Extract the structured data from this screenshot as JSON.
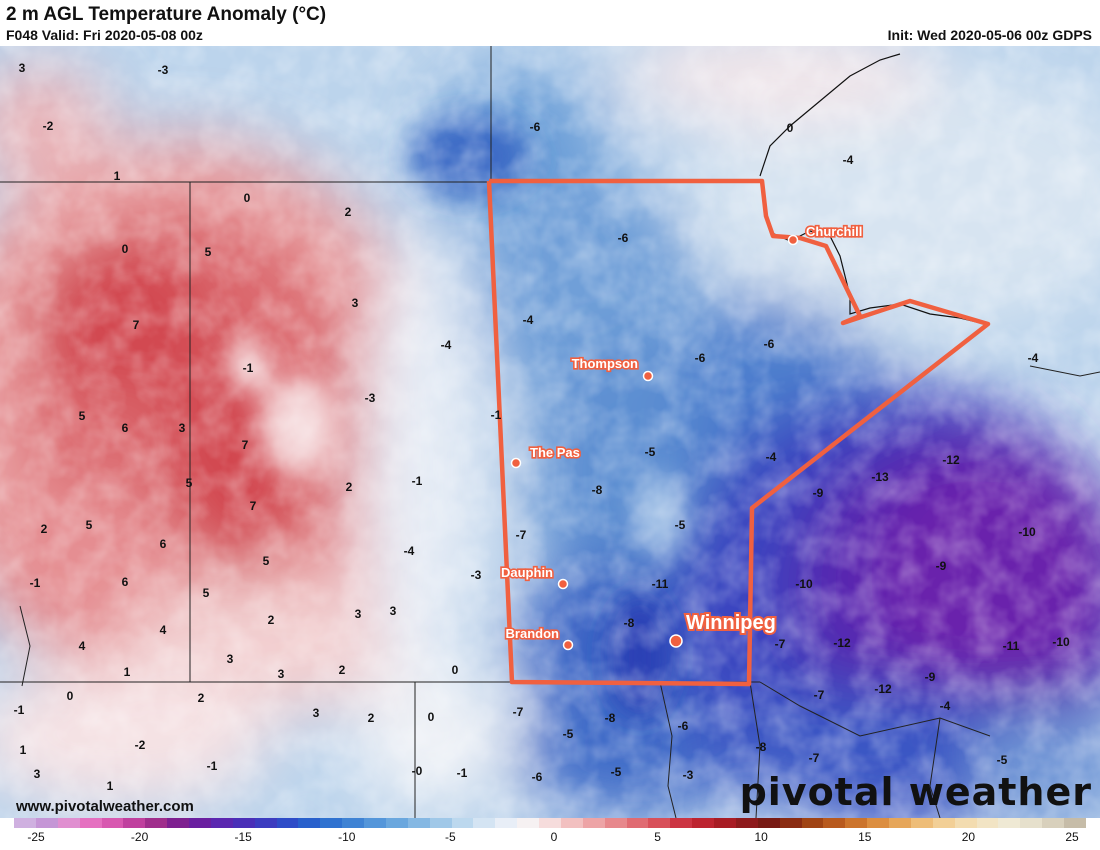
{
  "header": {
    "title": "2 m AGL Temperature Anomaly (°C)",
    "valid": "F048 Valid: Fri 2020-05-08 00z",
    "init": "Init: Wed 2020-05-06 00z GDPS"
  },
  "footer": {
    "url": "www.pivotalweather.com",
    "brand": "pivotal weather"
  },
  "colorbar": {
    "ticks": [
      "-25",
      "-20",
      "-15",
      "-10",
      "-5",
      "0",
      "5",
      "10",
      "15",
      "20",
      "25"
    ],
    "colors": [
      "#cfb0e0",
      "#c596d6",
      "#e08fd0",
      "#e570c0",
      "#d858b0",
      "#c0409e",
      "#a02e8c",
      "#7e2090",
      "#6a1fa0",
      "#5b27b0",
      "#4a2fb8",
      "#3c3cc0",
      "#2e4cc8",
      "#2860cc",
      "#2f72d0",
      "#3f83d4",
      "#5496da",
      "#6aa7de",
      "#85b8e3",
      "#a0c8e8",
      "#bcd8ee",
      "#d4e4f3",
      "#e8eef7",
      "#f6f1f2",
      "#f6dcdc",
      "#f2c0c0",
      "#eda4a6",
      "#e7888c",
      "#e06b72",
      "#d8505a",
      "#cc3543",
      "#bd2430",
      "#a81c24",
      "#8e1a1c",
      "#781a14",
      "#8a2c12",
      "#a04414",
      "#b85a1e",
      "#cc742c",
      "#dc8e40",
      "#e6a65a",
      "#eebd78",
      "#f2cf96",
      "#f3dcb0",
      "#f2e4c4",
      "#efe9d4",
      "#e6e0cc",
      "#d8d0bc",
      "#c6bca8"
    ]
  },
  "map": {
    "cities": [
      {
        "name": "Churchill",
        "big": false
      },
      {
        "name": "Thompson",
        "big": false
      },
      {
        "name": "The Pas",
        "big": false
      },
      {
        "name": "Dauphin",
        "big": false
      },
      {
        "name": "Brandon",
        "big": false
      },
      {
        "name": "Winnipeg",
        "big": true
      }
    ],
    "contour_labels": [
      "3",
      "-3",
      "-2",
      "1",
      "0",
      "2",
      "0",
      "5",
      "3",
      "7",
      "-4",
      "-1",
      "-3",
      "5",
      "6",
      "3",
      "7",
      "5",
      "7",
      "2",
      "-1",
      "2",
      "5",
      "6",
      "-4",
      "5",
      "-1",
      "-3",
      "3",
      "6",
      "5",
      "4",
      "2",
      "3",
      "4",
      "3",
      "1",
      "3",
      "2",
      "-1",
      "0",
      "2",
      "3",
      "2",
      "1",
      "0",
      "-2",
      "-1",
      "3",
      "1",
      "-1",
      "-0",
      "-1",
      "-6",
      "-6",
      "-4",
      "-6",
      "-6",
      "-4",
      "-5",
      "-8",
      "-4",
      "-5",
      "-7",
      "-11",
      "-8",
      "-9",
      "-10",
      "-13",
      "-12",
      "-10",
      "-9",
      "-12",
      "-12",
      "-11",
      "-10",
      "-9",
      "-7",
      "-7",
      "-4",
      "-7",
      "-8",
      "-5",
      "-6",
      "-8",
      "-7",
      "-5",
      "-3",
      "-6",
      "-5",
      "0",
      "0",
      "-4"
    ]
  }
}
